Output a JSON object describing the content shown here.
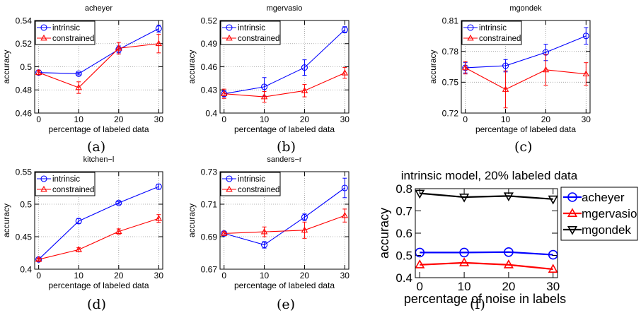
{
  "chart_data": [
    {
      "type": "line",
      "title": "acheyer",
      "panel_label": "(a)",
      "xlabel": "percentage of labeled data",
      "ylabel": "accuracy",
      "x": [
        0,
        10,
        20,
        30
      ],
      "xlim": [
        -1,
        31
      ],
      "ylim": [
        0.46,
        0.54
      ],
      "yticks": [
        "0.46",
        "0.48",
        "0.5",
        "0.52",
        "0.54"
      ],
      "yticks_values": [
        0.46,
        0.48,
        0.5,
        0.52,
        0.54
      ],
      "xticks": [
        "0",
        "10",
        "20",
        "30"
      ],
      "grid": true,
      "legend_position": "top-left",
      "series": [
        {
          "name": "intrinsic",
          "marker": "circle",
          "color": "#0000ff",
          "values": [
            0.495,
            0.494,
            0.515,
            0.533
          ],
          "errors": [
            0.002,
            0.001,
            0.003,
            0.003
          ]
        },
        {
          "name": "constrained",
          "marker": "triangle",
          "color": "#ff0000",
          "values": [
            0.495,
            0.482,
            0.516,
            0.52
          ],
          "errors": [
            0.002,
            0.005,
            0.005,
            0.008
          ]
        }
      ]
    },
    {
      "type": "line",
      "title": "mgervasio",
      "panel_label": "(b)",
      "xlabel": "percentage of labeled data",
      "ylabel": "accuracy",
      "x": [
        0,
        10,
        20,
        30
      ],
      "xlim": [
        -1,
        31
      ],
      "ylim": [
        0.4,
        0.52
      ],
      "yticks": [
        "0.4",
        "0.43",
        "0.46",
        "0.49",
        "0.52"
      ],
      "yticks_values": [
        0.4,
        0.43,
        0.46,
        0.49,
        0.52
      ],
      "xticks": [
        "0",
        "10",
        "20",
        "30"
      ],
      "grid": true,
      "legend_position": "top-left",
      "series": [
        {
          "name": "intrinsic",
          "marker": "circle",
          "color": "#0000ff",
          "values": [
            0.425,
            0.434,
            0.459,
            0.508
          ],
          "errors": [
            0.004,
            0.012,
            0.01,
            0.004
          ]
        },
        {
          "name": "constrained",
          "marker": "triangle",
          "color": "#ff0000",
          "values": [
            0.425,
            0.421,
            0.429,
            0.452
          ],
          "errors": [
            0.006,
            0.007,
            0.008,
            0.007
          ]
        }
      ]
    },
    {
      "type": "line",
      "title": "mgondek",
      "panel_label": "(c)",
      "xlabel": "percentage of labeled data",
      "ylabel": "accuracy",
      "x": [
        0,
        10,
        20,
        30
      ],
      "xlim": [
        -1,
        31
      ],
      "ylim": [
        0.72,
        0.81
      ],
      "yticks": [
        "0.72",
        "0.75",
        "0.78",
        "0.81"
      ],
      "yticks_values": [
        0.72,
        0.75,
        0.78,
        0.81
      ],
      "xticks": [
        "0",
        "10",
        "20",
        "30"
      ],
      "grid": true,
      "legend_position": "top-left",
      "series": [
        {
          "name": "intrinsic",
          "marker": "circle",
          "color": "#0000ff",
          "values": [
            0.764,
            0.766,
            0.779,
            0.795
          ],
          "errors": [
            0.005,
            0.006,
            0.008,
            0.008
          ]
        },
        {
          "name": "constrained",
          "marker": "triangle",
          "color": "#ff0000",
          "values": [
            0.764,
            0.743,
            0.762,
            0.758
          ],
          "errors": [
            0.006,
            0.018,
            0.015,
            0.011
          ]
        }
      ]
    },
    {
      "type": "line",
      "title": "kitchen−l",
      "panel_label": "(d)",
      "xlabel": "percentage of labeled data",
      "ylabel": "accuracy",
      "x": [
        0,
        10,
        20,
        30
      ],
      "xlim": [
        -1,
        31
      ],
      "ylim": [
        0.4,
        0.55
      ],
      "yticks": [
        "0.4",
        "0.45",
        "0.5",
        "0.55"
      ],
      "yticks_values": [
        0.4,
        0.45,
        0.5,
        0.55
      ],
      "xticks": [
        "0",
        "10",
        "20",
        "30"
      ],
      "grid": true,
      "legend_position": "top-left",
      "series": [
        {
          "name": "intrinsic",
          "marker": "circle",
          "color": "#0000ff",
          "values": [
            0.415,
            0.474,
            0.502,
            0.527
          ],
          "errors": [
            0.002,
            0.004,
            0.002,
            0.004
          ]
        },
        {
          "name": "constrained",
          "marker": "triangle",
          "color": "#ff0000",
          "values": [
            0.415,
            0.43,
            0.458,
            0.478
          ],
          "errors": [
            0.002,
            0.003,
            0.004,
            0.006
          ]
        }
      ]
    },
    {
      "type": "line",
      "title": "sanders−r",
      "panel_label": "(e)",
      "xlabel": "percentage of labeled data",
      "ylabel": "accuracy",
      "x": [
        0,
        10,
        20,
        30
      ],
      "xlim": [
        -1,
        31
      ],
      "ylim": [
        0.67,
        0.73
      ],
      "yticks": [
        "0.67",
        "0.69",
        "0.71",
        "0.73"
      ],
      "yticks_values": [
        0.67,
        0.69,
        0.71,
        0.73
      ],
      "xticks": [
        "0",
        "10",
        "20",
        "30"
      ],
      "grid": true,
      "legend_position": "top-left",
      "series": [
        {
          "name": "intrinsic",
          "marker": "circle",
          "color": "#0000ff",
          "values": [
            0.692,
            0.685,
            0.702,
            0.72
          ],
          "errors": [
            0.001,
            0.002,
            0.002,
            0.006
          ]
        },
        {
          "name": "constrained",
          "marker": "triangle",
          "color": "#ff0000",
          "values": [
            0.692,
            0.693,
            0.694,
            0.703
          ],
          "errors": [
            0.001,
            0.003,
            0.005,
            0.004
          ]
        }
      ]
    },
    {
      "type": "line",
      "title": "intrinsic model, 20% labeled data",
      "panel_label": "(f)",
      "xlabel": "percentage of noise in labels",
      "ylabel": "accuracy",
      "x": [
        0,
        10,
        20,
        30
      ],
      "xlim": [
        -1,
        31
      ],
      "ylim": [
        0.4,
        0.8
      ],
      "yticks": [
        "0.4",
        "0.5",
        "0.6",
        "0.7",
        "0.8"
      ],
      "yticks_values": [
        0.4,
        0.5,
        0.6,
        0.7,
        0.8
      ],
      "xticks": [
        "0",
        "10",
        "20",
        "30"
      ],
      "grid": false,
      "legend_position": "outside-right",
      "series": [
        {
          "name": "acheyer",
          "marker": "circle",
          "color": "#0000ff",
          "values": [
            0.513,
            0.513,
            0.515,
            0.503
          ]
        },
        {
          "name": "mgervasio",
          "marker": "triangle",
          "color": "#ff0000",
          "values": [
            0.458,
            0.467,
            0.458,
            0.438
          ]
        },
        {
          "name": "mgondek",
          "marker": "triangle-down",
          "color": "#000000",
          "values": [
            0.779,
            0.762,
            0.767,
            0.753
          ]
        }
      ]
    }
  ]
}
